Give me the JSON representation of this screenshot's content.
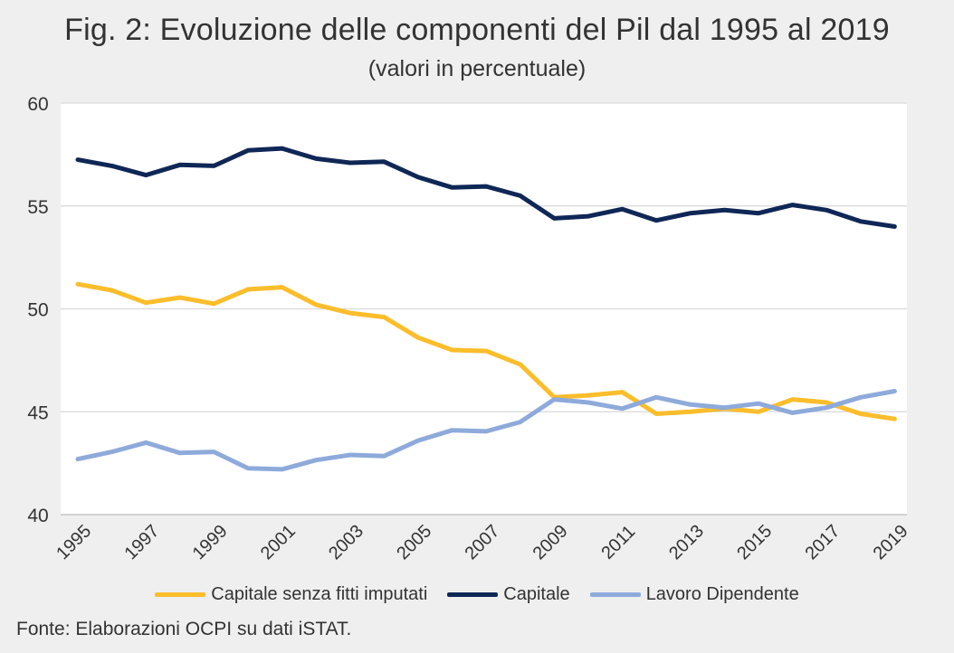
{
  "title": "Fig. 2: Evoluzione delle componenti del Pil dal 1995 al 2019",
  "subtitle": "(valori in percentuale)",
  "source": "Fonte: Elaborazioni OCPI su dati iSTAT.",
  "chart_data": {
    "type": "line",
    "x": [
      "1995",
      "1996",
      "1997",
      "1998",
      "1999",
      "2000",
      "2001",
      "2002",
      "2003",
      "2004",
      "2005",
      "2006",
      "2007",
      "2008",
      "2009",
      "2010",
      "2011",
      "2012",
      "2013",
      "2014",
      "2015",
      "2016",
      "2017",
      "2018",
      "2019"
    ],
    "xticklabels": [
      "1995",
      "1997",
      "1999",
      "2001",
      "2003",
      "2005",
      "2007",
      "2009",
      "2011",
      "2013",
      "2015",
      "2017",
      "2019"
    ],
    "yticks": [
      40,
      45,
      50,
      55,
      60
    ],
    "ylim": [
      40,
      60
    ],
    "grid": true,
    "legend_position": "bottom",
    "series": [
      {
        "name": "Capitale senza fitti imputati",
        "color": "#fbbd2b",
        "values": [
          51.2,
          50.9,
          50.3,
          50.55,
          50.25,
          50.95,
          51.05,
          50.2,
          49.8,
          49.6,
          48.6,
          48.0,
          47.95,
          47.3,
          45.7,
          45.8,
          45.95,
          44.9,
          45.0,
          45.15,
          45.0,
          45.6,
          45.45,
          44.9,
          44.65
        ]
      },
      {
        "name": "Capitale",
        "color": "#0f2756",
        "values": [
          57.25,
          56.95,
          56.5,
          57.0,
          56.95,
          57.7,
          57.8,
          57.3,
          57.1,
          57.15,
          56.4,
          55.9,
          55.95,
          55.5,
          54.4,
          54.5,
          54.85,
          54.3,
          54.65,
          54.8,
          54.65,
          55.05,
          54.8,
          54.25,
          54.0
        ]
      },
      {
        "name": "Lavoro Dipendente",
        "color": "#8eaadb",
        "values": [
          42.7,
          43.05,
          43.5,
          43.0,
          43.05,
          42.25,
          42.2,
          42.65,
          42.9,
          42.85,
          43.6,
          44.1,
          44.05,
          44.5,
          45.6,
          45.45,
          45.15,
          45.7,
          45.35,
          45.2,
          45.4,
          44.95,
          45.2,
          45.7,
          46.0
        ]
      }
    ]
  }
}
